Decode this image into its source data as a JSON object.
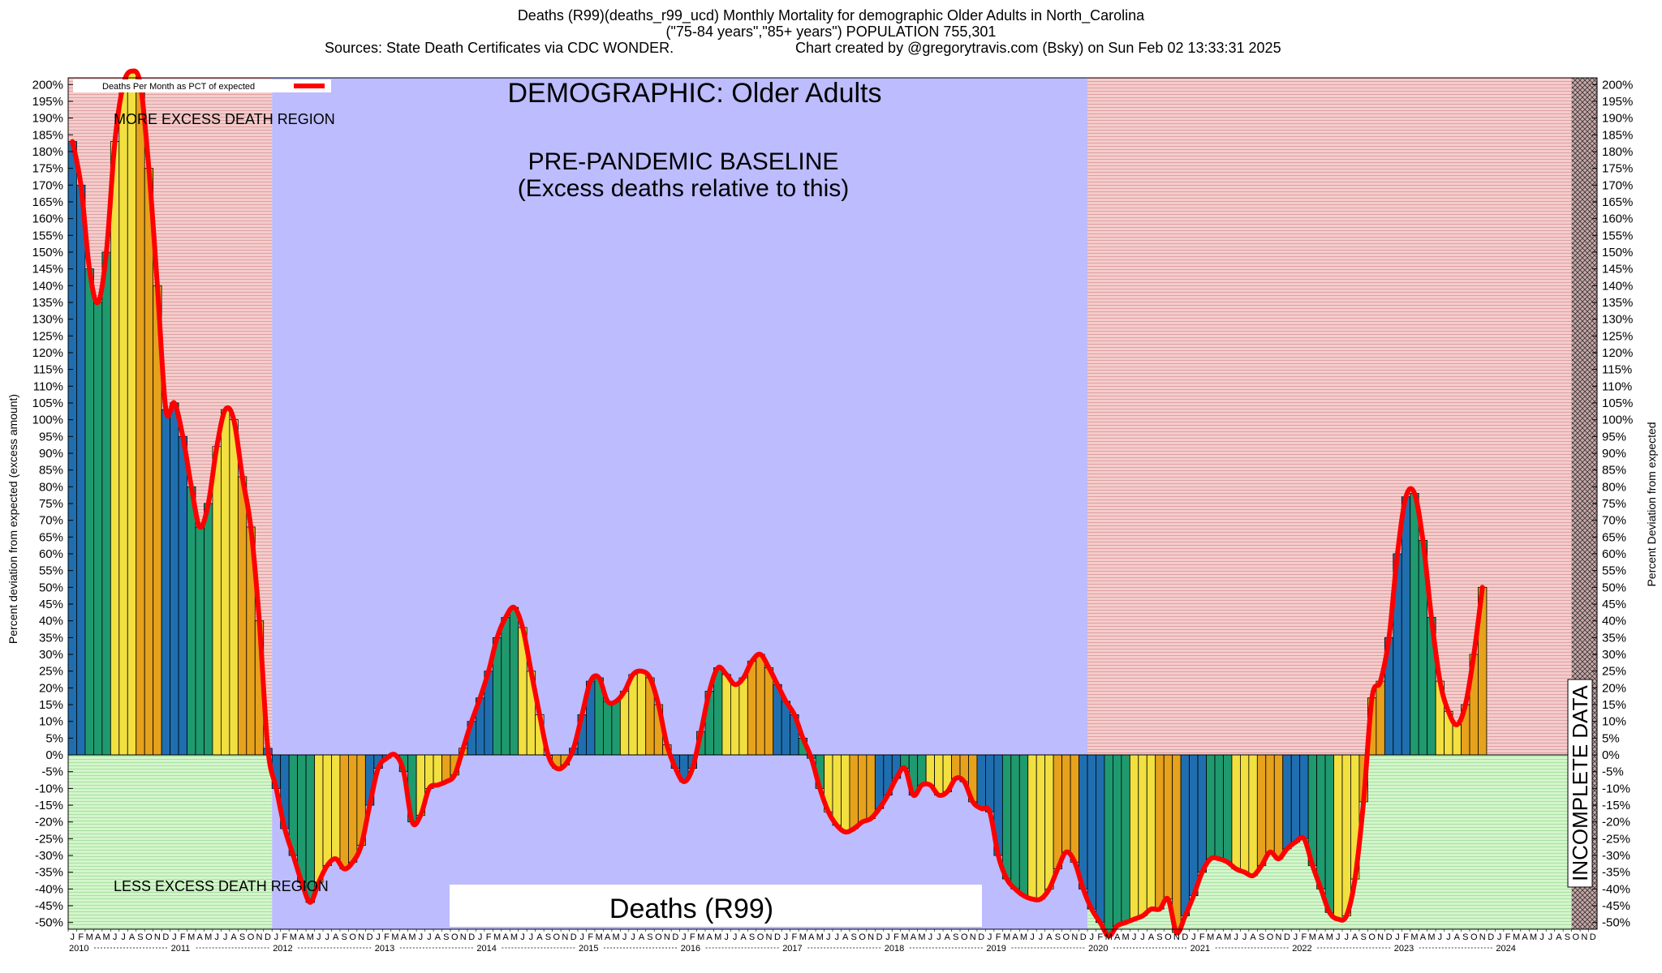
{
  "title": {
    "line1": "Deaths (R99)(deaths_r99_ucd) Monthly Mortality for demographic Older Adults in North_Carolina",
    "line2": "(\"75-84 years\",\"85+ years\") POPULATION 755,301",
    "line3_left": "Sources: State Death Certificates via CDC WONDER.",
    "line3_right": "Chart created by @gregorytravis.com (Bsky) on Sun Feb 02 13:33:31 2025"
  },
  "chart_data": {
    "type": "bar",
    "demographic_label": "DEMOGRAPHIC: Older Adults",
    "baseline_label_1": "PRE-PANDEMIC BASELINE",
    "baseline_label_2": "(Excess deaths relative to this)",
    "more_region_label": "MORE EXCESS DEATH REGION",
    "less_region_label": "LESS EXCESS DEATH REGION",
    "incomplete_label": "INCOMPLETE DATA",
    "cause_label": "Deaths (R99)",
    "legend_label": "Deaths Per Month as PCT of expected",
    "ylabel_left": "Percent deviation from expected (excess amount)",
    "ylabel_right": "Percent Deviation from expected",
    "ylim": [
      -52,
      202
    ],
    "ytick_step": 5,
    "start_year": 2010,
    "years": [
      "2010",
      "2011",
      "2012",
      "2013",
      "2014",
      "2015",
      "2016",
      "2017",
      "2018",
      "2019",
      "2020",
      "2021",
      "2022",
      "2023",
      "2024"
    ],
    "month_letters": [
      "J",
      "F",
      "M",
      "A",
      "M",
      "J",
      "J",
      "A",
      "S",
      "O",
      "N",
      "D"
    ],
    "regions": [
      {
        "name": "more excess (pre-baseline)",
        "from": "2010-01",
        "to": "2011-12",
        "color": "#f2c4c4"
      },
      {
        "name": "pre-pandemic baseline",
        "from": "2012-01",
        "to": "2019-12",
        "color": "#bcbcff"
      },
      {
        "name": "more excess (pandemic)",
        "from": "2020-01",
        "to": "2024-09",
        "color": "#f2c4c4"
      },
      {
        "name": "less excess",
        "color": "#c8f0c0"
      },
      {
        "name": "incomplete data",
        "from": "2024-10",
        "to": "2024-12",
        "color": "#d9b3b3"
      }
    ],
    "season_colors": [
      "#1f6fb0",
      "#1f9a6f",
      "#f2e040",
      "#e6a21c"
    ],
    "line_color": "#ff0000",
    "values": [
      183,
      170,
      145,
      135,
      150,
      183,
      200,
      204,
      200,
      175,
      140,
      103,
      105,
      95,
      80,
      68,
      75,
      92,
      103,
      100,
      83,
      68,
      40,
      2,
      -10,
      -22,
      -30,
      -38,
      -44,
      -38,
      -33,
      -31,
      -34,
      -32,
      -27,
      -15,
      -4,
      -1,
      0,
      -5,
      -20,
      -18,
      -10,
      -9,
      -8,
      -6,
      2,
      10,
      17,
      25,
      35,
      41,
      44,
      38,
      25,
      12,
      0,
      -4,
      -3,
      2,
      12,
      22,
      23,
      16,
      16,
      19,
      24,
      25,
      23,
      15,
      3,
      -4,
      -8,
      -4,
      7,
      19,
      26,
      24,
      21,
      23,
      28,
      30,
      26,
      21,
      16,
      12,
      5,
      -1,
      -10,
      -17,
      -21,
      -23,
      -22,
      -20,
      -19,
      -16,
      -12,
      -7,
      -4,
      -12,
      -9,
      -9,
      -12,
      -11,
      -7,
      -8,
      -14,
      -16,
      -17,
      -30,
      -37,
      -40,
      -42,
      -43,
      -43,
      -40,
      -34,
      -29,
      -32,
      -40,
      -46,
      -50,
      -54,
      -51,
      -50,
      -49,
      -48,
      -46,
      -46,
      -43,
      -53,
      -48,
      -42,
      -35,
      -31,
      -31,
      -32,
      -34,
      -35,
      -36,
      -33,
      -29,
      -31,
      -28,
      -26,
      -25,
      -33,
      -40,
      -47,
      -49,
      -48,
      -37,
      -14,
      17,
      22,
      35,
      60,
      77,
      78,
      64,
      41,
      22,
      13,
      9,
      15,
      30,
      50
    ],
    "series": [
      {
        "name": "Deaths Per Month as PCT of expected",
        "values_ref": "values"
      }
    ]
  }
}
